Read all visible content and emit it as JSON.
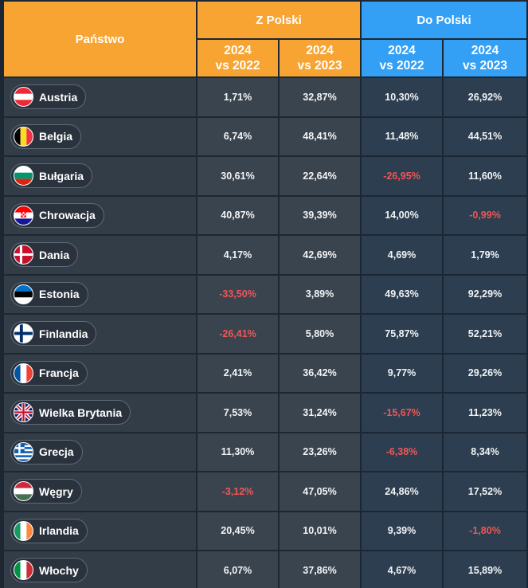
{
  "header": {
    "country_label": "Państwo",
    "from_poland": "Z Polski",
    "to_poland": "Do Polski",
    "subcols": [
      {
        "line1": "2024",
        "line2": "vs 2022"
      },
      {
        "line1": "2024",
        "line2": "vs 2023"
      },
      {
        "line1": "2024",
        "line2": "vs 2022"
      },
      {
        "line1": "2024",
        "line2": "vs 2023"
      }
    ]
  },
  "colors": {
    "orange": "#f8a433",
    "blue": "#33a0f5",
    "negative": "#f05656",
    "background": "#1c2733"
  },
  "rows": [
    {
      "country": "Austria",
      "flag": "austria-flag-icon",
      "values": [
        "1,71%",
        "32,87%",
        "10,30%",
        "26,92%"
      ]
    },
    {
      "country": "Belgia",
      "flag": "belgium-flag-icon",
      "values": [
        "6,74%",
        "48,41%",
        "11,48%",
        "44,51%"
      ]
    },
    {
      "country": "Bułgaria",
      "flag": "bulgaria-flag-icon",
      "values": [
        "30,61%",
        "22,64%",
        "-26,95%",
        "11,60%"
      ]
    },
    {
      "country": "Chrowacja",
      "flag": "croatia-flag-icon",
      "values": [
        "40,87%",
        "39,39%",
        "14,00%",
        "-0,99%"
      ]
    },
    {
      "country": "Dania",
      "flag": "denmark-flag-icon",
      "values": [
        "4,17%",
        "42,69%",
        "4,69%",
        "1,79%"
      ]
    },
    {
      "country": "Estonia",
      "flag": "estonia-flag-icon",
      "values": [
        "-33,50%",
        "3,89%",
        "49,63%",
        "92,29%"
      ]
    },
    {
      "country": "Finlandia",
      "flag": "finland-flag-icon",
      "values": [
        "-26,41%",
        "5,80%",
        "75,87%",
        "52,21%"
      ]
    },
    {
      "country": "Francja",
      "flag": "france-flag-icon",
      "values": [
        "2,41%",
        "36,42%",
        "9,77%",
        "29,26%"
      ]
    },
    {
      "country": "Wielka Brytania",
      "flag": "uk-flag-icon",
      "values": [
        "7,53%",
        "31,24%",
        "-15,67%",
        "11,23%"
      ]
    },
    {
      "country": "Grecja",
      "flag": "greece-flag-icon",
      "values": [
        "11,30%",
        "23,26%",
        "-6,38%",
        "8,34%"
      ]
    },
    {
      "country": "Węgry",
      "flag": "hungary-flag-icon",
      "values": [
        "-3,12%",
        "47,05%",
        "24,86%",
        "17,52%"
      ]
    },
    {
      "country": "Irlandia",
      "flag": "ireland-flag-icon",
      "values": [
        "20,45%",
        "10,01%",
        "9,39%",
        "-1,80%"
      ]
    },
    {
      "country": "Włochy",
      "flag": "italy-flag-icon",
      "values": [
        "6,07%",
        "37,86%",
        "4,67%",
        "15,89%"
      ]
    }
  ]
}
